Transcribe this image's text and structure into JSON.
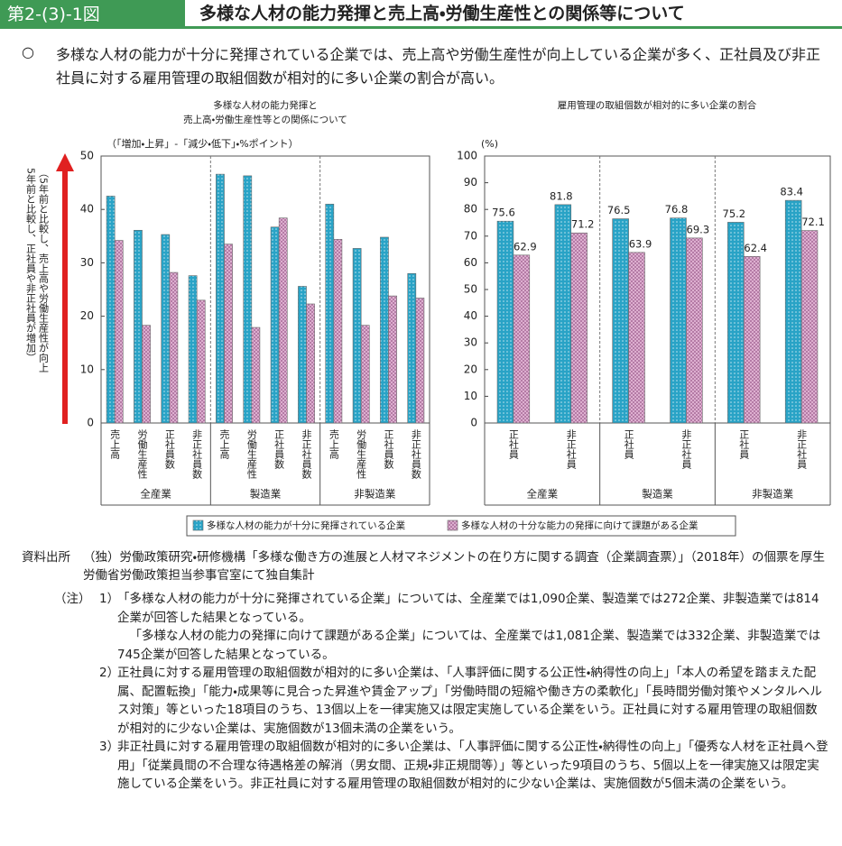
{
  "header": {
    "label": "第2-(3)-1図",
    "title": "多様な人材の能力発揮と売上高・労働生産性との関係等について"
  },
  "summary": {
    "bullet": "○",
    "text": "多様な人材の能力が十分に発揮されている企業では、売上高や労働生産性が向上している企業が多く、正社員及び非正社員に対する雇用管理の取組個数が相対的に多い企業の割合が高い。"
  },
  "chart_data": [
    {
      "type": "bar",
      "title": [
        "多様な人材の能力発揮と",
        "売上高・労働生産性等との関係について"
      ],
      "y_unit": "（「増加・上昇」-「減少・低下」・%ポイント）",
      "y_label": [
        "（5年前と比較し、売上高や労働生産性が向上",
        "5年前と比較し、正社員や非正社員が増加）"
      ],
      "categories": [
        "売上高",
        "労働生産性",
        "正社員数",
        "非正社員数",
        "売上高",
        "労働生産性",
        "正社員数",
        "非正社員数",
        "売上高",
        "労働生産性",
        "正社員数",
        "非正社員数"
      ],
      "groups": [
        "全産業",
        "製造業",
        "非製造業"
      ],
      "series": [
        {
          "name": "多様な人材の能力が十分に発揮されている企業",
          "color": "#29a3c6",
          "values": [
            42.5,
            36.1,
            35.3,
            27.6,
            46.6,
            46.3,
            36.7,
            25.6,
            41.0,
            32.7,
            34.8,
            28.0
          ]
        },
        {
          "name": "多様な人材の十分な能力の発揮に向けて課題がある企業",
          "color": "#e3b6d6",
          "values": [
            34.2,
            18.3,
            28.2,
            23.0,
            33.5,
            17.9,
            38.4,
            22.3,
            34.4,
            18.3,
            23.8,
            23.4
          ]
        }
      ],
      "ylim": [
        0,
        50
      ],
      "yticks": [
        0,
        10,
        20,
        30,
        40,
        50
      ],
      "data_labels": false
    },
    {
      "type": "bar",
      "title": [
        "雇用管理の取組個数が相対的に多い企業の割合"
      ],
      "y_unit": "(%)",
      "categories": [
        "正社員",
        "非正社員",
        "正社員",
        "非正社員",
        "正社員",
        "非正社員"
      ],
      "groups": [
        "全産業",
        "製造業",
        "非製造業"
      ],
      "series": [
        {
          "color": "#29a3c6",
          "values": [
            75.6,
            81.8,
            76.5,
            76.8,
            75.2,
            83.4
          ]
        },
        {
          "color": "#e3b6d6",
          "values": [
            62.9,
            71.2,
            63.9,
            69.3,
            62.4,
            72.1
          ]
        }
      ],
      "ylim": [
        0,
        100
      ],
      "yticks": [
        0,
        10,
        20,
        30,
        40,
        50,
        60,
        70,
        80,
        90,
        100
      ],
      "data_labels": true
    }
  ],
  "source": {
    "label": "資料出所",
    "text": "（独）労働政策研究・研修機構「多様な働き方の進展と人材マネジメントの在り方に関する調査（企業調査票）」（2018年）の個票を厚生労働省労働政策担当参事官室にて独自集計"
  },
  "notes": {
    "label": "（注）",
    "items": [
      {
        "number": "1）",
        "paragraphs": [
          "「多様な人材の能力が十分に発揮されている企業」については、全産業では1,090企業、製造業では272企業、非製造業では814企業が回答した結果となっている。",
          "「多様な人材の能力の発揮に向けて課題がある企業」については、全産業では1,081企業、製造業では332企業、非製造業では745企業が回答した結果となっている。"
        ]
      },
      {
        "number": "2）",
        "paragraphs": [
          "正社員に対する雇用管理の取組個数が相対的に多い企業は、「人事評価に関する公正性・納得性の向上」「本人の希望を踏まえた配属、配置転換」「能力・成果等に見合った昇進や賃金アップ」「労働時間の短縮や働き方の柔軟化」「長時間労働対策やメンタルヘルス対策」等といった18項目のうち、13個以上を一律実施又は限定実施している企業をいう。正社員に対する雇用管理の取組個数が相対的に少ない企業は、実施個数が13個未満の企業をいう。"
        ]
      },
      {
        "number": "3）",
        "paragraphs": [
          "非正社員に対する雇用管理の取組個数が相対的に多い企業は、「人事評価に関する公正性・納得性の向上」「優秀な人材を正社員へ登用」「従業員間の不合理な待遇格差の解消（男女間、正規・非正規間等）」等といった9項目のうち、5個以上を一律実施又は限定実施している企業をいう。非正社員に対する雇用管理の取組個数が相対的に少ない企業は、実施個数が5個未満の企業をいう。"
        ]
      }
    ]
  }
}
